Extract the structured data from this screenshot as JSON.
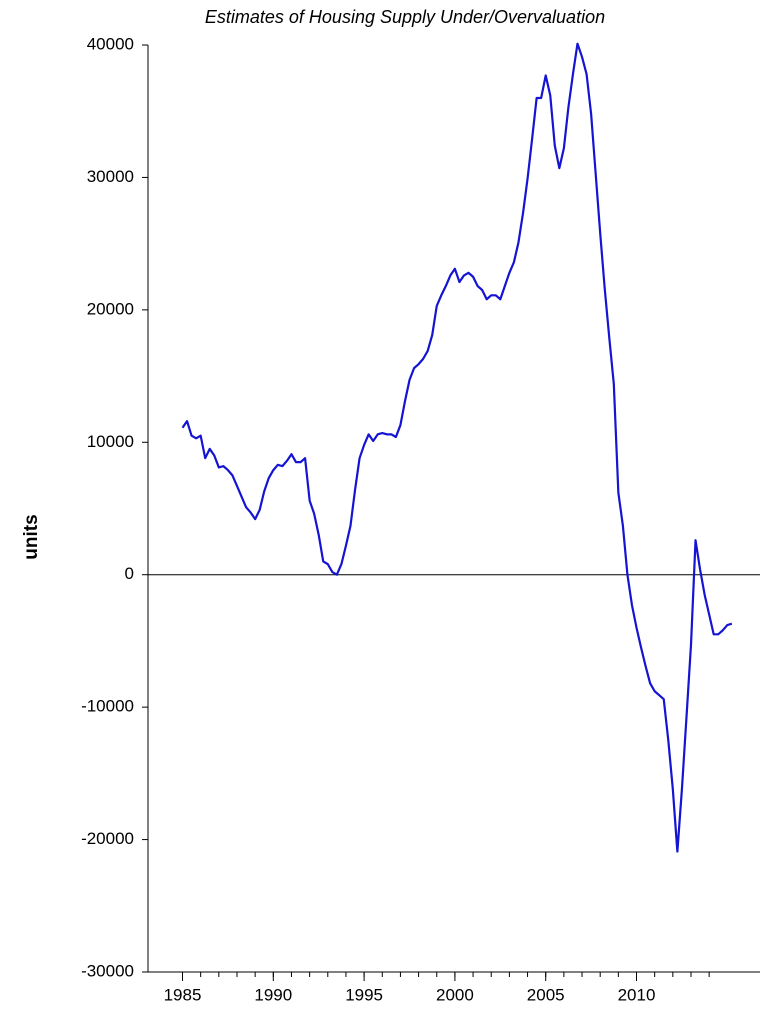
{
  "chart_data": {
    "type": "line",
    "title": "Estimates of Housing Supply Under/Overvaluation",
    "y_label": "units",
    "x": [
      1985,
      1985.25,
      1985.5,
      1985.75,
      1986,
      1986.25,
      1986.5,
      1986.75,
      1987,
      1987.25,
      1987.5,
      1987.75,
      1988,
      1988.25,
      1988.5,
      1988.75,
      1989,
      1989.25,
      1989.5,
      1989.75,
      1990,
      1990.25,
      1990.5,
      1990.75,
      1991,
      1991.25,
      1991.5,
      1991.75,
      1992,
      1992.25,
      1992.5,
      1992.75,
      1993,
      1993.25,
      1993.5,
      1993.75,
      1994,
      1994.25,
      1994.5,
      1994.75,
      1995,
      1995.25,
      1995.5,
      1995.75,
      1996,
      1996.25,
      1996.5,
      1996.75,
      1997,
      1997.25,
      1997.5,
      1997.75,
      1998,
      1998.25,
      1998.5,
      1998.75,
      1999,
      1999.25,
      1999.5,
      1999.75,
      2000,
      2000.25,
      2000.5,
      2000.75,
      2001,
      2001.25,
      2001.5,
      2001.75,
      2002,
      2002.25,
      2002.5,
      2002.75,
      2003,
      2003.25,
      2003.5,
      2003.75,
      2004,
      2004.25,
      2004.5,
      2004.75,
      2005,
      2005.25,
      2005.5,
      2005.75,
      2006,
      2006.25,
      2006.5,
      2006.75,
      2007,
      2007.25,
      2007.5,
      2007.75,
      2008,
      2008.25,
      2008.5,
      2008.75,
      2009,
      2009.25,
      2009.5,
      2009.75,
      2010,
      2010.25,
      2010.5,
      2010.75,
      2011,
      2011.25,
      2011.5,
      2011.75,
      2012,
      2012.25,
      2012.5,
      2012.75,
      2013,
      2013.25,
      2013.5,
      2013.75,
      2014,
      2014.25,
      2014.5,
      2014.75,
      2015,
      2015.25
    ],
    "series": [
      {
        "name": "units",
        "color": "#1414d2",
        "values": [
          11100,
          11600,
          10500,
          10300,
          10500,
          8800,
          9500,
          9000,
          8100,
          8200,
          7900,
          7500,
          6700,
          5900,
          5100,
          4700,
          4200,
          4900,
          6300,
          7300,
          7900,
          8300,
          8200,
          8600,
          9100,
          8500,
          8500,
          8800,
          5600,
          4600,
          3000,
          1000,
          800,
          200,
          0,
          800,
          2200,
          3700,
          6400,
          8800,
          9800,
          10600,
          10100,
          10600,
          10700,
          10600,
          10600,
          10400,
          11300,
          13100,
          14700,
          15600,
          15900,
          16300,
          16900,
          18100,
          20300,
          21100,
          21800,
          22600,
          23100,
          22100,
          22600,
          22800,
          22500,
          21800,
          21500,
          20800,
          21100,
          21100,
          20800,
          21800,
          22800,
          23600,
          25100,
          27300,
          29900,
          32900,
          36000,
          36000,
          37700,
          36200,
          32400,
          30700,
          32200,
          35300,
          37800,
          40100,
          39100,
          37800,
          34800,
          30300,
          25800,
          21600,
          17900,
          14400,
          6200,
          3700,
          0,
          -2300,
          -4000,
          -5500,
          -6900,
          -8200,
          -8800,
          -9100,
          -9400,
          -12500,
          -16200,
          -20900,
          -16200,
          -10800,
          -5300,
          2600,
          400,
          -1500,
          -3000,
          -4500,
          -4500,
          -4200,
          -3800,
          -3700
        ]
      }
    ],
    "xlim": [
      1983.1,
      2016.8
    ],
    "xticks": [
      1985,
      1990,
      1995,
      2000,
      2005,
      2010
    ],
    "xminorticks": [
      1985,
      1986,
      1987,
      1988,
      1989,
      1990,
      1991,
      1992,
      1993,
      1994,
      1995,
      1996,
      1997,
      1998,
      1999,
      2000,
      2001,
      2002,
      2003,
      2004,
      2005,
      2006,
      2007,
      2008,
      2009,
      2010,
      2011,
      2012,
      2013,
      2014
    ],
    "ylim": [
      -30000,
      40000
    ],
    "yticks": [
      -30000,
      -20000,
      -10000,
      0,
      10000,
      20000,
      30000,
      40000
    ],
    "hline": 0
  }
}
